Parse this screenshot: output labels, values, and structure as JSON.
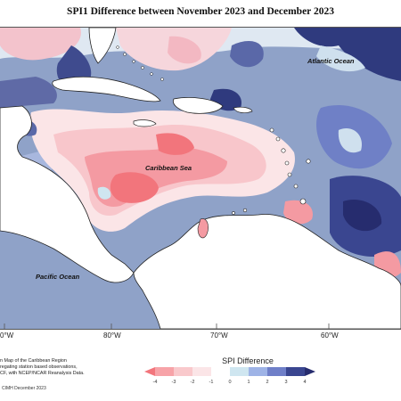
{
  "title": "SPI1 Difference between November 2023 and December 2023",
  "map": {
    "labels": {
      "atlantic": "Atlantic Ocean",
      "caribbean": "Caribbean Sea",
      "pacific": "Pacific Ocean"
    },
    "longitudes": [
      "0°W",
      "80°W",
      "70°W",
      "60°W"
    ]
  },
  "credit": {
    "line1": "n Map of the Caribbean Region",
    "line2": "regating station based observations,",
    "line3": "CF, with NCEP/NCAR Reanalysis Data.",
    "copyright": "CIMH December 2023"
  },
  "legend": {
    "title": "SPI Difference",
    "ticks": [
      "-4",
      "-3",
      "-2",
      "-1",
      "0",
      "1",
      "2",
      "3",
      "4"
    ],
    "colors": [
      "#f2757c",
      "#f7a3a8",
      "#f9c9cc",
      "#fbe5e7",
      "#ffffff",
      "#cfe6f0",
      "#9eb3e6",
      "#6f7fc8",
      "#3a4690",
      "#262c6e"
    ]
  }
}
